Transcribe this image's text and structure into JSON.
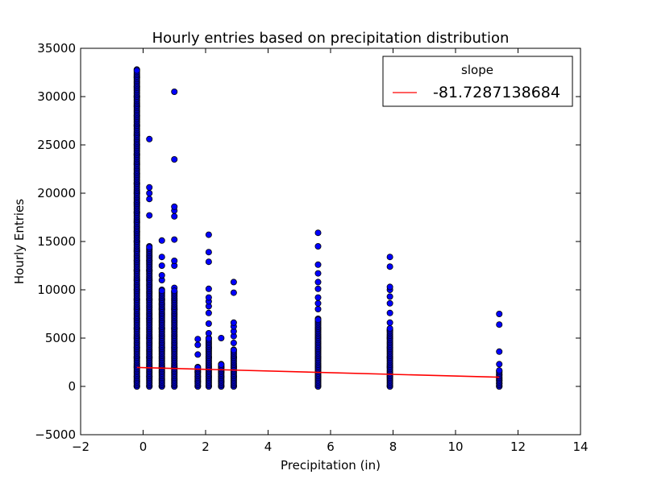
{
  "chart_data": {
    "type": "scatter",
    "title": "Hourly entries based on precipitation distribution",
    "xlabel": "Precipitation (in)",
    "ylabel": "Hourly Entries",
    "xlim": [
      -2,
      14
    ],
    "ylim": [
      -5000,
      35000
    ],
    "xticks": [
      -2,
      0,
      2,
      4,
      6,
      8,
      10,
      12,
      14
    ],
    "yticks": [
      -5000,
      0,
      5000,
      10000,
      15000,
      20000,
      25000,
      30000,
      35000
    ],
    "xtick_labels": [
      "−2",
      "0",
      "2",
      "4",
      "6",
      "8",
      "10",
      "12",
      "14"
    ],
    "ytick_labels": [
      "−5000",
      "0",
      "5000",
      "10000",
      "15000",
      "20000",
      "25000",
      "30000",
      "35000"
    ],
    "grid": false,
    "legend": {
      "title": "slope",
      "placement": "top-right",
      "entries": [
        "-81.7287138684"
      ]
    },
    "colors": {
      "points": "#0000ff",
      "point_edge": "#000000",
      "fit_line": "#ff0000"
    },
    "fit_line": {
      "name": "-81.7287138684",
      "x": [
        -0.2,
        11.4
      ],
      "y": [
        1960,
        950
      ]
    },
    "columns": [
      {
        "x": -0.2,
        "points": [
          0,
          500,
          1000,
          2000,
          3000,
          4000,
          5000,
          6000,
          7000,
          8000,
          9000,
          10000,
          11000,
          12000,
          13000,
          14000,
          15000,
          16000,
          17000,
          18000,
          19000,
          20000,
          21000,
          22000,
          23000,
          24000,
          25000,
          26000,
          27000,
          28000,
          29000,
          30000,
          31000,
          32000,
          32800
        ],
        "dense_max": 32800
      },
      {
        "x": 0.2,
        "points": [
          0,
          1000,
          2000,
          3000,
          5000,
          7000,
          9000,
          11000,
          12000,
          13000,
          14500,
          17700,
          19400,
          20000,
          20600,
          25600
        ],
        "dense_max": 14500
      },
      {
        "x": 0.6,
        "points": [
          0,
          2000,
          4000,
          6000,
          8000,
          8500,
          9000,
          10000,
          11000,
          11500,
          12500,
          13400,
          15100
        ],
        "dense_max": 10000
      },
      {
        "x": 1.0,
        "points": [
          0,
          2000,
          4000,
          6000,
          8000,
          9800,
          10200,
          12500,
          13000,
          15200,
          17600,
          18200,
          18600,
          23500,
          30500
        ],
        "dense_max": 10000
      },
      {
        "x": 1.75,
        "points": [
          0,
          500,
          1000,
          1500,
          2000,
          3300,
          4300,
          4900
        ],
        "dense_max": 2000
      },
      {
        "x": 2.1,
        "points": [
          0,
          1000,
          2000,
          3000,
          4000,
          5000,
          5500,
          6500,
          7600,
          8300,
          8800,
          9200,
          10100,
          12900,
          13900,
          15700
        ],
        "dense_max": 5000
      },
      {
        "x": 2.5,
        "points": [
          0,
          500,
          1000,
          1500,
          2000,
          2300,
          5000
        ],
        "dense_max": 2300
      },
      {
        "x": 2.9,
        "points": [
          0,
          1000,
          2000,
          3000,
          3800,
          4500,
          5200,
          5700,
          6200,
          6600,
          9700,
          10800
        ],
        "dense_max": 3800
      },
      {
        "x": 5.6,
        "points": [
          0,
          1000,
          2000,
          3000,
          4000,
          5000,
          6000,
          7000,
          8000,
          8600,
          9200,
          10100,
          10800,
          11700,
          12600,
          14500,
          15900
        ],
        "dense_max": 7000
      },
      {
        "x": 7.9,
        "points": [
          0,
          1000,
          2000,
          3000,
          4000,
          5000,
          5800,
          6600,
          7600,
          8600,
          9300,
          10000,
          10300,
          12400,
          13400
        ],
        "dense_max": 6000
      },
      {
        "x": 11.4,
        "points": [
          0,
          300,
          600,
          900,
          1200,
          1600,
          2300,
          3600,
          6400,
          7500
        ],
        "dense_max": 1700
      }
    ]
  }
}
